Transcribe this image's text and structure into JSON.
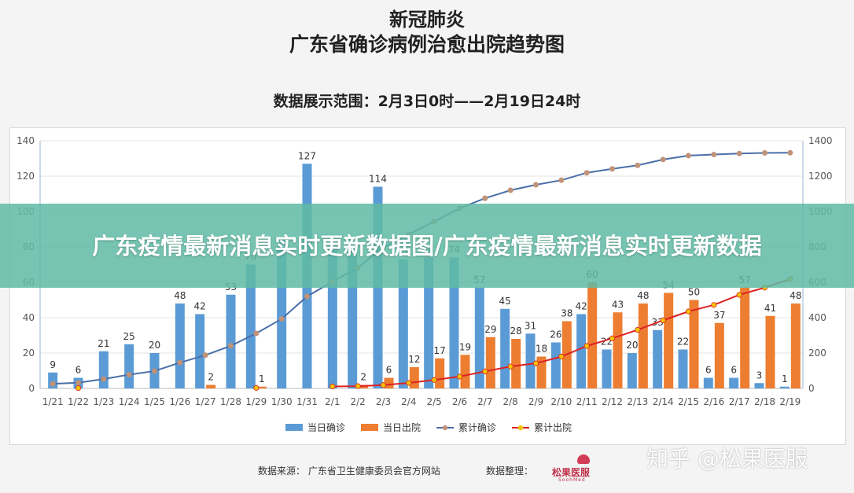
{
  "header": {
    "title_line1": "新冠肺炎",
    "title_line2": "广东省确诊病例治愈出院趋势图",
    "range": "数据展示范围：2月3日0时——2月19日24时"
  },
  "banner": {
    "text": "广东疫情最新消息实时更新数据图/广东疫情最新消息实时更新数据"
  },
  "footer": {
    "source": "数据来源：  广东省卫生健康委员会官方网站",
    "organizer": "数据整理：",
    "logo_text": "松果医服",
    "logo_sub": "SoohMed"
  },
  "watermark": "知乎 @松果医服",
  "colors": {
    "daily_confirmed": "#5b9bd5",
    "daily_discharged": "#ed7d31",
    "cum_confirmed_line": "#4a6fa8",
    "cum_confirmed_marker": "#c09278",
    "cum_discharged_line": "#dd2222",
    "cum_discharged_marker": "#f5c400"
  },
  "chart_data": {
    "type": "bar",
    "categories": [
      "1/21",
      "1/22",
      "1/23",
      "1/24",
      "1/25",
      "1/26",
      "1/27",
      "1/28",
      "1/29",
      "1/30",
      "1/31",
      "2/1",
      "2/2",
      "2/3",
      "2/4",
      "2/5",
      "2/6",
      "2/7",
      "2/8",
      "2/9",
      "2/10",
      "2/11",
      "2/12",
      "2/13",
      "2/14",
      "2/15",
      "2/16",
      "2/17",
      "2/18",
      "2/19"
    ],
    "yleft_ticks": [
      "0",
      "20",
      "40",
      "60",
      "80",
      "100",
      "120",
      "140"
    ],
    "yright_ticks": [
      "0",
      "200",
      "400",
      "600",
      "800",
      "1000",
      "1200",
      "1400"
    ],
    "ylim_left": [
      0,
      140
    ],
    "ylim_right": [
      0,
      1400
    ],
    "series": [
      {
        "name": "当日确诊",
        "kind": "bar",
        "axis": "left",
        "values": [
          9,
          6,
          21,
          25,
          20,
          48,
          42,
          53,
          70,
          85,
          127,
          82,
          79,
          114,
          73,
          74,
          74,
          57,
          45,
          31,
          26,
          42,
          22,
          20,
          33,
          22,
          6,
          6,
          3,
          1
        ]
      },
      {
        "name": "当日出院",
        "kind": "bar",
        "axis": "left",
        "values": [
          null,
          null,
          null,
          null,
          null,
          null,
          2,
          null,
          1,
          null,
          null,
          null,
          2,
          6,
          12,
          17,
          19,
          29,
          28,
          18,
          38,
          60,
          43,
          48,
          54,
          50,
          37,
          57,
          41,
          48
        ]
      },
      {
        "name": "累计确诊",
        "kind": "line",
        "axis": "right",
        "values": [
          26,
          32,
          53,
          78,
          98,
          146,
          188,
          241,
          311,
          393,
          520,
          604,
          683,
          797,
          870,
          944,
          1018,
          1075,
          1120,
          1151,
          1177,
          1219,
          1241,
          1261,
          1294,
          1316,
          1322,
          1328,
          1331,
          1332
        ]
      },
      {
        "name": "累计出院",
        "kind": "line",
        "axis": "right",
        "values": [
          null,
          2,
          null,
          null,
          null,
          null,
          null,
          null,
          3,
          null,
          null,
          11,
          13,
          19,
          31,
          48,
          67,
          96,
          124,
          142,
          180,
          240,
          283,
          331,
          385,
          435,
          472,
          529,
          570,
          618
        ]
      }
    ],
    "bar_labels_confirmed": [
      "9",
      "6",
      "21",
      "25",
      "20",
      "48",
      "42",
      "53",
      "70",
      "",
      "127",
      "",
      "",
      "114",
      "73",
      "74",
      "74",
      "57",
      "45",
      "31",
      "26",
      "42",
      "22",
      "20",
      "33",
      "22",
      "6",
      "6",
      "3",
      "1"
    ],
    "bar_labels_discharged": [
      "",
      "",
      "",
      "",
      "",
      "",
      "2",
      "",
      "1",
      "",
      "",
      "",
      "2",
      "6",
      "12",
      "17",
      "19",
      "29",
      "28",
      "18",
      "38",
      "60",
      "43",
      "48",
      "54",
      "50",
      "37",
      "57",
      "41",
      "48"
    ]
  }
}
